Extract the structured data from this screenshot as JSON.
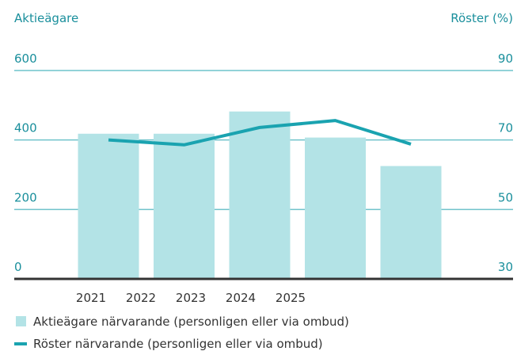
{
  "chart_data": {
    "type": "bar+line",
    "ylabel": "Aktieägare",
    "y2label": "Röster (%)",
    "categories": [
      "2021",
      "2022",
      "2023",
      "2024",
      "2025"
    ],
    "series": [
      {
        "name": "Aktieägare närvarande (personligen eller via ombud)",
        "type": "bar",
        "axis": "y",
        "color": "#b3e3e6",
        "values": [
          418,
          418,
          482,
          407,
          325
        ]
      },
      {
        "name": "Röster närvarande (personligen eller via ombud)",
        "type": "line",
        "axis": "y2",
        "color": "#1aa3b0",
        "values": [
          70,
          68.6,
          73.6,
          75.6,
          68.8
        ]
      }
    ],
    "ylim": [
      0,
      600
    ],
    "yticks": [
      0,
      200,
      400,
      600
    ],
    "y2lim": [
      30,
      90
    ],
    "y2ticks": [
      30,
      50,
      70,
      90
    ],
    "grid": true
  }
}
